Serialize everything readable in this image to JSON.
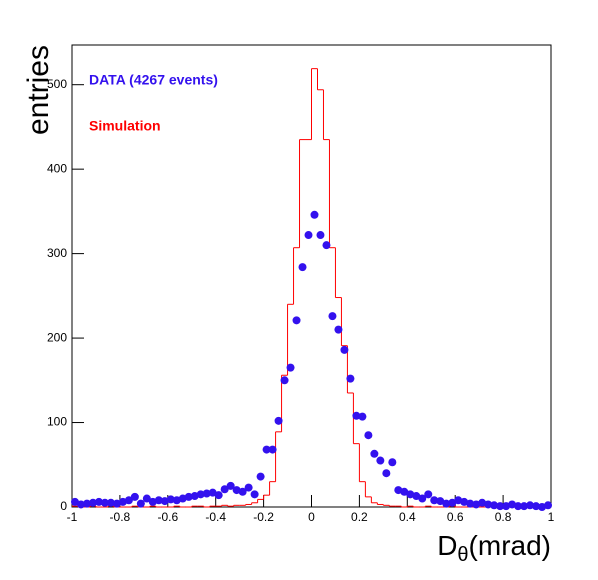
{
  "chart_data": {
    "type": "histogram",
    "y_label": "entries",
    "x_label": {
      "main": "D",
      "sub": "θ",
      "unit": "(mrad)"
    },
    "xlim": [
      -1,
      1
    ],
    "ylim": [
      0,
      547
    ],
    "xticks": [
      -1,
      -0.8,
      -0.6,
      -0.4,
      -0.2,
      0,
      0.2,
      0.4,
      0.6,
      0.8,
      1
    ],
    "yticks": [
      0,
      100,
      200,
      300,
      400,
      500
    ],
    "bins": [
      -1,
      -0.975,
      -0.95,
      -0.925,
      -0.9,
      -0.875,
      -0.85,
      -0.825,
      -0.8,
      -0.775,
      -0.75,
      -0.725,
      -0.7,
      -0.675,
      -0.65,
      -0.625,
      -0.6,
      -0.575,
      -0.55,
      -0.525,
      -0.5,
      -0.475,
      -0.45,
      -0.425,
      -0.4,
      -0.375,
      -0.35,
      -0.325,
      -0.3,
      -0.275,
      -0.25,
      -0.225,
      -0.2,
      -0.175,
      -0.15,
      -0.125,
      -0.1,
      -0.075,
      -0.05,
      -0.025,
      0,
      0.025,
      0.05,
      0.075,
      0.1,
      0.125,
      0.15,
      0.175,
      0.2,
      0.225,
      0.25,
      0.275,
      0.3,
      0.325,
      0.35,
      0.375,
      0.4,
      0.425,
      0.45,
      0.475,
      0.5,
      0.525,
      0.55,
      0.575,
      0.6,
      0.625,
      0.65,
      0.675,
      0.7,
      0.725,
      0.75,
      0.775,
      0.8,
      0.825,
      0.85,
      0.875,
      0.9,
      0.925,
      0.95,
      0.975,
      1
    ],
    "series": [
      {
        "name": "DATA (4267 events)",
        "color": "#3311ee",
        "style": "points",
        "values": [
          6,
          3,
          4,
          5,
          6,
          5,
          5,
          4,
          6,
          8,
          12,
          4,
          10,
          6,
          8,
          7,
          9,
          8,
          10,
          12,
          13,
          15,
          16,
          17,
          14,
          21,
          25,
          20,
          18,
          23,
          15,
          36,
          68,
          68,
          102,
          150,
          165,
          221,
          284,
          322,
          346,
          322,
          310,
          226,
          210,
          186,
          152,
          108,
          107,
          85,
          63,
          55,
          40,
          53,
          20,
          18,
          15,
          13,
          10,
          15,
          8,
          7,
          4,
          5,
          8,
          6,
          4,
          3,
          5,
          3,
          2,
          1,
          1,
          3,
          1,
          1,
          2,
          1,
          0,
          2
        ]
      },
      {
        "name": "Simulation",
        "color": "#ff0000",
        "style": "step",
        "values": [
          1,
          0,
          0,
          1,
          0,
          0,
          1,
          0,
          0,
          0,
          1,
          0,
          0,
          1,
          0,
          0,
          0,
          1,
          0,
          0,
          1,
          1,
          0,
          1,
          1,
          2,
          1,
          2,
          2,
          3,
          5,
          9,
          14,
          30,
          89,
          156,
          240,
          307,
          435,
          435,
          519,
          494,
          435,
          307,
          248,
          191,
          135,
          75,
          30,
          12,
          5,
          3,
          2,
          1,
          1,
          0,
          1,
          0,
          0,
          1,
          0,
          0,
          0,
          1,
          0,
          0,
          0,
          1,
          0,
          0,
          0,
          0,
          1,
          0,
          0,
          0,
          0,
          0,
          0,
          0
        ]
      }
    ]
  }
}
